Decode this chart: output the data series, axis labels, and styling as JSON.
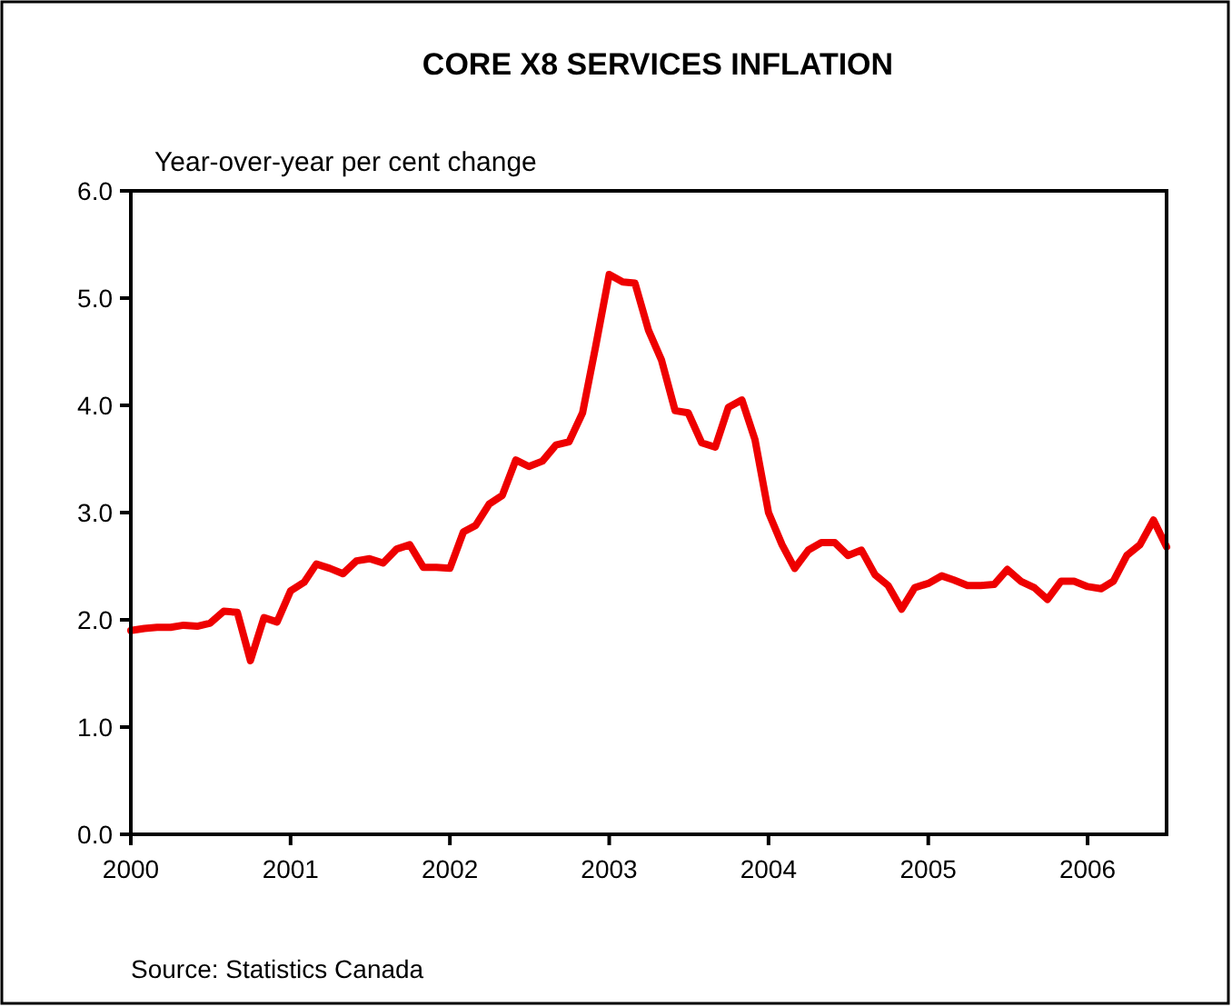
{
  "chart_data": {
    "type": "line",
    "title": "CORE X8 SERVICES INFLATION",
    "ylabel": "Year-over-year per cent change",
    "annotations": [
      "Source: Statistics Canada"
    ],
    "x": [
      "2000-01",
      "2000-02",
      "2000-03",
      "2000-04",
      "2000-05",
      "2000-06",
      "2000-07",
      "2000-08",
      "2000-09",
      "2000-10",
      "2000-11",
      "2000-12",
      "2001-01",
      "2001-02",
      "2001-03",
      "2001-04",
      "2001-05",
      "2001-06",
      "2001-07",
      "2001-08",
      "2001-09",
      "2001-10",
      "2001-11",
      "2001-12",
      "2002-01",
      "2002-02",
      "2002-03",
      "2002-04",
      "2002-05",
      "2002-06",
      "2002-07",
      "2002-08",
      "2002-09",
      "2002-10",
      "2002-11",
      "2002-12",
      "2003-01",
      "2003-02",
      "2003-03",
      "2003-04",
      "2003-05",
      "2003-06",
      "2003-07",
      "2003-08",
      "2003-09",
      "2003-10",
      "2003-11",
      "2003-12",
      "2004-01",
      "2004-02",
      "2004-03",
      "2004-04",
      "2004-05",
      "2004-06",
      "2004-07",
      "2004-08",
      "2004-09",
      "2004-10",
      "2004-11",
      "2004-12",
      "2005-01",
      "2005-02",
      "2005-03",
      "2005-04",
      "2005-05",
      "2005-06",
      "2005-07",
      "2005-08",
      "2005-09",
      "2005-10",
      "2005-11",
      "2005-12",
      "2006-01",
      "2006-02",
      "2006-03",
      "2006-04",
      "2006-05",
      "2006-06",
      "2006-07"
    ],
    "series": [
      {
        "color": "#ee0000",
        "values": [
          1.9,
          1.92,
          1.93,
          1.93,
          1.95,
          1.94,
          1.97,
          2.08,
          2.07,
          1.62,
          2.02,
          1.98,
          2.27,
          2.35,
          2.52,
          2.48,
          2.43,
          2.55,
          2.57,
          2.53,
          2.66,
          2.7,
          2.49,
          2.49,
          2.48,
          2.82,
          2.88,
          3.08,
          3.16,
          3.49,
          3.43,
          3.48,
          3.63,
          3.66,
          3.93,
          4.55,
          5.22,
          5.15,
          5.14,
          4.7,
          4.42,
          3.95,
          3.93,
          3.65,
          3.61,
          3.98,
          4.05,
          3.68,
          3.0,
          2.7,
          2.48,
          2.65,
          2.72,
          2.72,
          2.6,
          2.65,
          2.42,
          2.32,
          2.1,
          2.3,
          2.34,
          2.41,
          2.37,
          2.32,
          2.32,
          2.33,
          2.47,
          2.36,
          2.3,
          2.19,
          2.36,
          2.36,
          2.31,
          2.29,
          2.36,
          2.6,
          2.7,
          2.93,
          2.68
        ]
      }
    ],
    "xlim": [
      "2000-01",
      "2006-07"
    ],
    "xticks": [
      "2000",
      "2001",
      "2002",
      "2003",
      "2004",
      "2005",
      "2006"
    ],
    "ylim": [
      0,
      6
    ],
    "yticks": [
      {
        "value": 0,
        "label": "0.0"
      },
      {
        "value": 1,
        "label": "1.0"
      },
      {
        "value": 2,
        "label": "2.0"
      },
      {
        "value": 3,
        "label": "3.0"
      },
      {
        "value": 4,
        "label": "4.0"
      },
      {
        "value": 5,
        "label": "5.0"
      },
      {
        "value": 6,
        "label": "6.0"
      }
    ],
    "grid": false,
    "marker": "none",
    "line_style": "solid"
  }
}
